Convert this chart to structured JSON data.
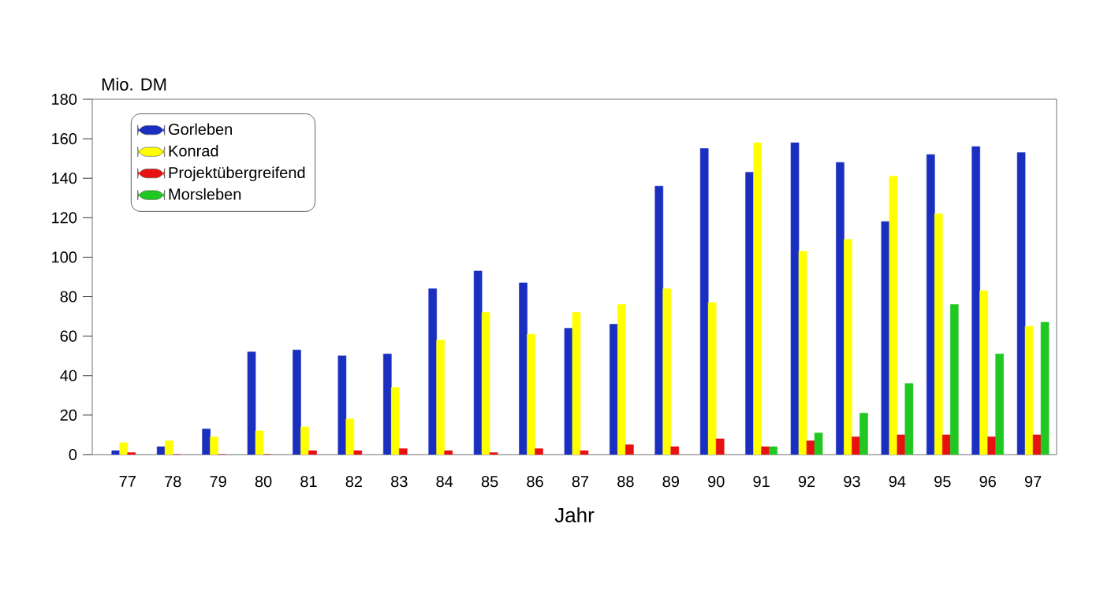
{
  "chart_data": {
    "type": "bar",
    "ylabel": "Mio. DM",
    "xlabel": "Jahr",
    "categories": [
      "77",
      "78",
      "79",
      "80",
      "81",
      "82",
      "83",
      "84",
      "85",
      "86",
      "87",
      "88",
      "89",
      "90",
      "91",
      "92",
      "93",
      "94",
      "95",
      "96",
      "97"
    ],
    "series": [
      {
        "name": "Gorleben",
        "color": "#1a2fc0",
        "values": [
          2,
          4,
          13,
          52,
          53,
          50,
          51,
          84,
          93,
          87,
          64,
          66,
          136,
          155,
          143,
          158,
          148,
          118,
          152,
          156,
          153
        ]
      },
      {
        "name": "Konrad",
        "color": "#ffff00",
        "values": [
          6,
          7,
          9,
          12,
          14,
          18,
          34,
          58,
          72,
          61,
          72,
          76,
          84,
          77,
          158,
          103,
          109,
          141,
          122,
          83,
          65
        ]
      },
      {
        "name": "Projektübergreifend",
        "color": "#e81010",
        "values": [
          1,
          0,
          0,
          0,
          2,
          2,
          3,
          2,
          1,
          3,
          2,
          5,
          4,
          8,
          4,
          7,
          9,
          10,
          10,
          9,
          10
        ]
      },
      {
        "name": "Morsleben",
        "color": "#22c822",
        "values": [
          null,
          null,
          null,
          null,
          null,
          null,
          null,
          null,
          null,
          null,
          null,
          null,
          null,
          null,
          4,
          11,
          21,
          36,
          76,
          51,
          67
        ]
      }
    ],
    "ylim": [
      0,
      180
    ],
    "yticks": [
      0,
      20,
      40,
      60,
      80,
      100,
      120,
      140,
      160,
      180
    ],
    "legend": "top left",
    "grid": false
  }
}
